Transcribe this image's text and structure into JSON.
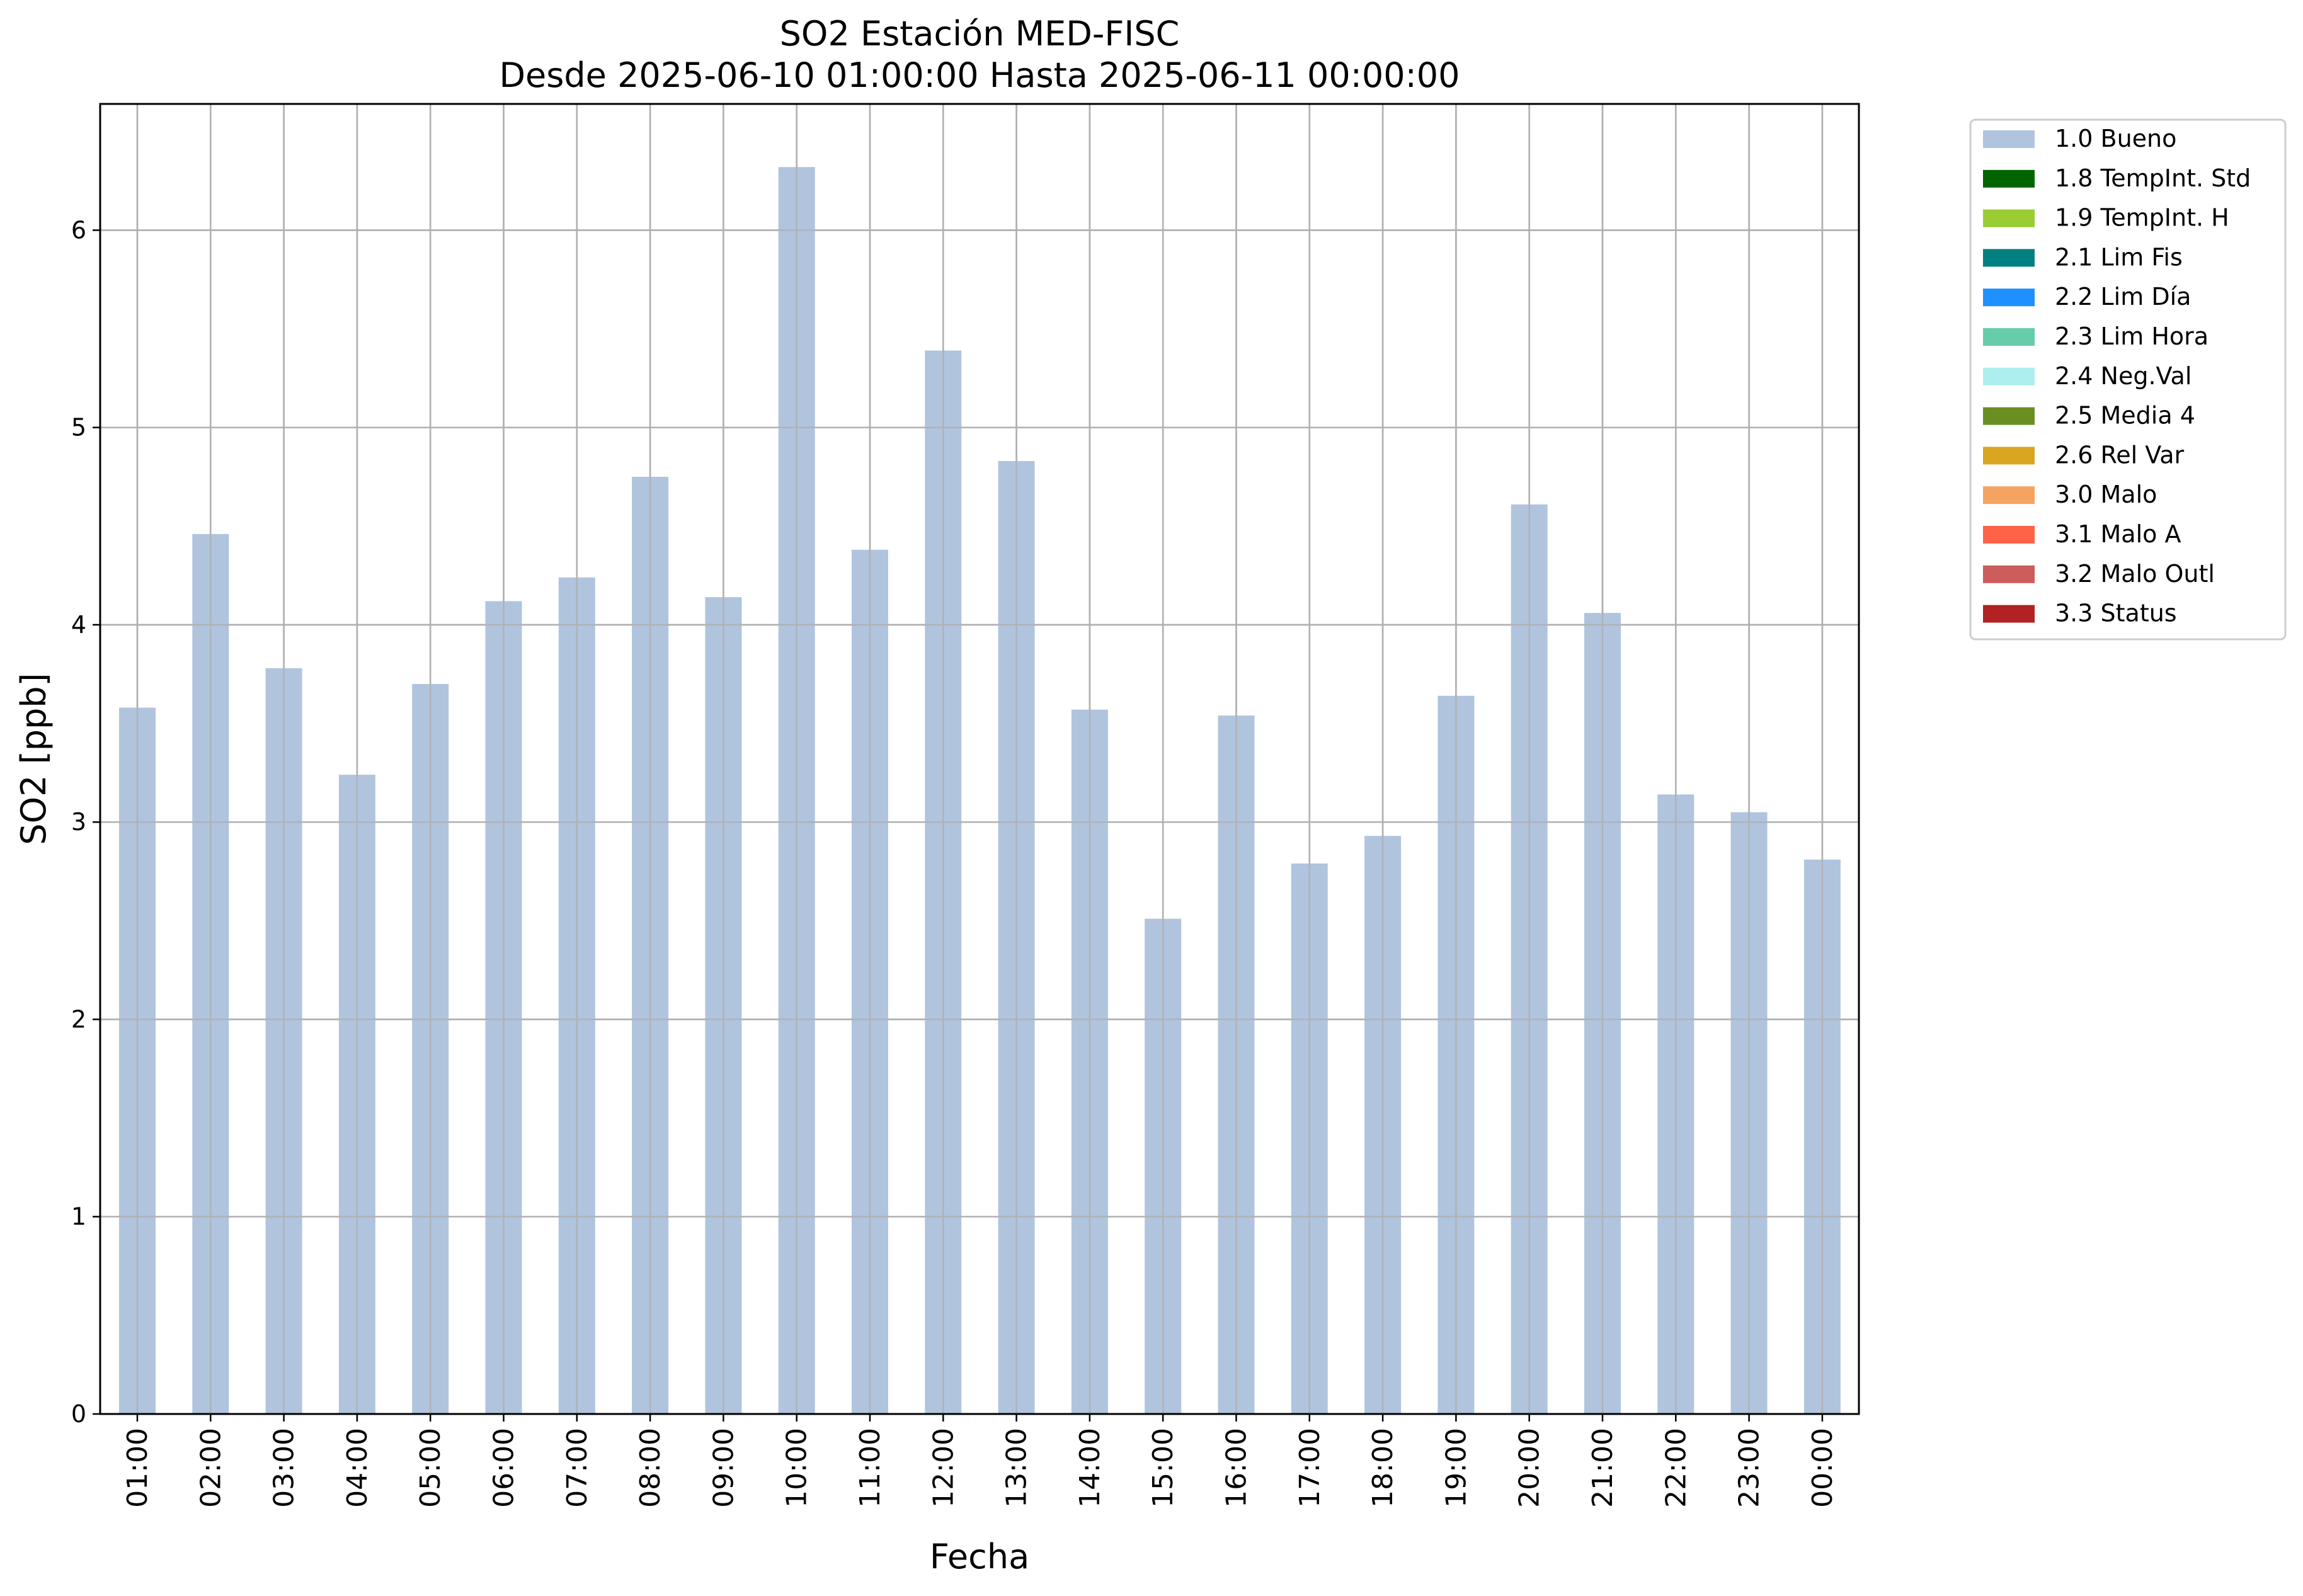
{
  "chart_data": {
    "type": "bar",
    "title": "SO2 Estación MED-FISC",
    "subtitle": "Desde 2025-06-10 01:00:00 Hasta 2025-06-11 00:00:00",
    "xlabel": "Fecha",
    "ylabel": "SO2 [ppb]",
    "ylim": [
      0,
      6.64
    ],
    "yticks": [
      "0",
      "1",
      "2",
      "3",
      "4",
      "5",
      "6"
    ],
    "grid": true,
    "legend_position": "outside-right",
    "categories": [
      "01:00",
      "02:00",
      "03:00",
      "04:00",
      "05:00",
      "06:00",
      "07:00",
      "08:00",
      "09:00",
      "10:00",
      "11:00",
      "12:00",
      "13:00",
      "14:00",
      "15:00",
      "16:00",
      "17:00",
      "18:00",
      "19:00",
      "20:00",
      "21:00",
      "22:00",
      "23:00",
      "00:00"
    ],
    "series": [
      {
        "name": "1.0 Bueno",
        "color": "#b0c4de",
        "values": [
          3.58,
          4.46,
          3.78,
          3.24,
          3.7,
          4.12,
          4.24,
          4.75,
          4.14,
          6.32,
          4.38,
          5.39,
          4.83,
          3.57,
          2.51,
          3.54,
          2.79,
          2.93,
          3.64,
          4.61,
          4.06,
          3.14,
          3.05,
          2.81
        ]
      }
    ],
    "legend": [
      {
        "label": "1.0 Bueno",
        "color": "#b0c4de"
      },
      {
        "label": "1.8 TempInt. Std",
        "color": "#006400"
      },
      {
        "label": "1.9 TempInt. H",
        "color": "#9acd32"
      },
      {
        "label": "2.1 Lim Fis",
        "color": "#008080"
      },
      {
        "label": "2.2 Lim Día",
        "color": "#1e90ff"
      },
      {
        "label": "2.3 Lim Hora",
        "color": "#66cdaa"
      },
      {
        "label": "2.4 Neg.Val",
        "color": "#afeeee"
      },
      {
        "label": "2.5 Media 4",
        "color": "#6b8e23"
      },
      {
        "label": "2.6 Rel Var",
        "color": "#daa520"
      },
      {
        "label": "3.0 Malo",
        "color": "#f4a460"
      },
      {
        "label": "3.1 Malo A",
        "color": "#ff6347"
      },
      {
        "label": "3.2 Malo Outl",
        "color": "#cd5c5c"
      },
      {
        "label": "3.3 Status",
        "color": "#b22222"
      }
    ]
  }
}
